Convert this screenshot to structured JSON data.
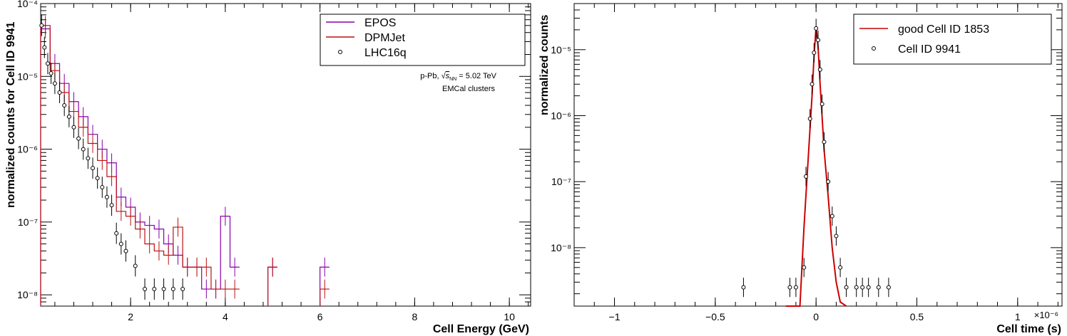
{
  "chart_data": [
    {
      "type": "step",
      "xlabel": "Cell Energy (GeV)",
      "ylabel": "normalized counts for Cell ID 9941",
      "x_range": [
        0.1,
        10.45
      ],
      "y_range": [
        7e-09,
        0.0001
      ],
      "y_scale": "log",
      "x_ticks": [
        {
          "v": 2,
          "label": "2"
        },
        {
          "v": 4,
          "label": "4"
        },
        {
          "v": 6,
          "label": "6"
        },
        {
          "v": 8,
          "label": "8"
        },
        {
          "v": 10,
          "label": "10"
        }
      ],
      "y_ticks": [
        {
          "v": 1e-08,
          "label": "10⁻⁸"
        },
        {
          "v": 1e-07,
          "label": "10⁻⁷"
        },
        {
          "v": 1e-06,
          "label": "10⁻⁶"
        },
        {
          "v": 1e-05,
          "label": "10⁻⁵"
        },
        {
          "v": 0.0001,
          "label": "10⁻⁴"
        }
      ],
      "annotation": [
        "p-Pb, √s_NN = 5.02 TeV",
        "EMCal clusters"
      ],
      "annotation_parts": {
        "prefix": "p-Pb, ",
        "sym": "s",
        "sub": "NN",
        "suffix": " = 5.02 TeV",
        "line2": "EMCal clusters"
      },
      "legend": {
        "placement": "top-right",
        "entries": [
          {
            "label": "EPOS",
            "style": "line",
            "color": "#8800aa"
          },
          {
            "label": "DPMJet",
            "style": "line",
            "color": "#bb1111"
          },
          {
            "label": "LHC16q",
            "style": "marker",
            "color": "#000000"
          }
        ]
      },
      "series": [
        {
          "name": "EPOS",
          "color": "#8800aa",
          "style": "step",
          "bin_width": 0.2,
          "points": [
            [
              0.2,
              4.5e-05
            ],
            [
              0.4,
              1.5e-05
            ],
            [
              0.6,
              8e-06
            ],
            [
              0.8,
              4.5e-06
            ],
            [
              1.0,
              2.8e-06
            ],
            [
              1.2,
              1.6e-06
            ],
            [
              1.4,
              1e-06
            ],
            [
              1.6,
              6.5e-07
            ],
            [
              1.8,
              2.2e-07
            ],
            [
              2.0,
              1.6e-07
            ],
            [
              2.2,
              1e-07
            ],
            [
              2.4,
              9e-08
            ],
            [
              2.6,
              8e-08
            ],
            [
              2.8,
              5e-08
            ],
            [
              3.0,
              3.5e-08
            ],
            [
              3.2,
              2.4e-08
            ],
            [
              3.4,
              2.4e-08
            ],
            [
              3.6,
              1.2e-08
            ],
            [
              3.8,
              1.2e-08
            ],
            [
              4.0,
              1.2e-07
            ],
            [
              4.2,
              2.4e-08
            ],
            [
              5.0,
              2.4e-08
            ],
            [
              6.1,
              2.4e-08
            ]
          ]
        },
        {
          "name": "DPMJet",
          "color": "#bb1111",
          "style": "step",
          "bin_width": 0.2,
          "points": [
            [
              0.2,
              5e-05
            ],
            [
              0.4,
              1.2e-05
            ],
            [
              0.6,
              6e-06
            ],
            [
              0.8,
              3.3e-06
            ],
            [
              1.0,
              2e-06
            ],
            [
              1.2,
              1.2e-06
            ],
            [
              1.4,
              7e-07
            ],
            [
              1.6,
              4.2e-07
            ],
            [
              1.8,
              1.4e-07
            ],
            [
              2.0,
              1.2e-07
            ],
            [
              2.2,
              8e-08
            ],
            [
              2.4,
              5e-08
            ],
            [
              2.6,
              4e-08
            ],
            [
              2.8,
              3.5e-08
            ],
            [
              3.0,
              8.5e-08
            ],
            [
              3.2,
              2.4e-08
            ],
            [
              3.4,
              2.4e-08
            ],
            [
              3.6,
              2.4e-08
            ],
            [
              3.8,
              1.2e-08
            ],
            [
              4.0,
              1.2e-08
            ],
            [
              4.2,
              1.2e-08
            ],
            [
              5.0,
              2.4e-08
            ],
            [
              6.1,
              1.2e-08
            ]
          ]
        },
        {
          "name": "LHC16q",
          "color": "#000000",
          "style": "markers",
          "points": [
            [
              0.12,
              5e-05
            ],
            [
              0.18,
              2.5e-05
            ],
            [
              0.25,
              1.5e-05
            ],
            [
              0.32,
              1.1e-05
            ],
            [
              0.4,
              8e-06
            ],
            [
              0.5,
              6e-06
            ],
            [
              0.6,
              4e-06
            ],
            [
              0.7,
              2.8e-06
            ],
            [
              0.8,
              2e-06
            ],
            [
              0.9,
              1.4e-06
            ],
            [
              1.0,
              1e-06
            ],
            [
              1.1,
              7.5e-07
            ],
            [
              1.2,
              5.5e-07
            ],
            [
              1.3,
              4e-07
            ],
            [
              1.4,
              3e-07
            ],
            [
              1.5,
              2.2e-07
            ],
            [
              1.6,
              1.7e-07
            ],
            [
              1.7,
              7e-08
            ],
            [
              1.8,
              5e-08
            ],
            [
              1.9,
              4e-08
            ],
            [
              2.1,
              2.5e-08
            ],
            [
              2.3,
              1.2e-08
            ],
            [
              2.5,
              1.2e-08
            ],
            [
              2.7,
              1.2e-08
            ],
            [
              2.9,
              1.2e-08
            ],
            [
              3.1,
              1.2e-08
            ]
          ]
        }
      ]
    },
    {
      "type": "line",
      "xlabel": "Cell time (s)",
      "ylabel": "normalized counts",
      "x_range": [
        -1.2e-06,
        1.22e-06
      ],
      "y_range": [
        1.3e-09,
        5e-05
      ],
      "y_scale": "log",
      "x_ticks": [
        {
          "v": -1e-06,
          "label": "−1"
        },
        {
          "v": -5e-07,
          "label": "−0.5"
        },
        {
          "v": 0,
          "label": "0"
        },
        {
          "v": 5e-07,
          "label": "0.5"
        },
        {
          "v": 1e-06,
          "label": "1"
        }
      ],
      "x_exponent_label": "×10⁻⁶",
      "y_ticks": [
        {
          "v": 1e-08,
          "label": "10⁻⁸"
        },
        {
          "v": 1e-07,
          "label": "10⁻⁷"
        },
        {
          "v": 1e-06,
          "label": "10⁻⁶"
        },
        {
          "v": 1e-05,
          "label": "10⁻⁵"
        }
      ],
      "legend": {
        "placement": "top-right",
        "entries": [
          {
            "label": "good Cell ID 1853",
            "style": "line",
            "color": "#cc0000"
          },
          {
            "label": "Cell ID 9941",
            "style": "marker",
            "color": "#000000"
          }
        ]
      },
      "series": [
        {
          "name": "good Cell ID 1853",
          "color": "#cc0000",
          "style": "line",
          "points": [
            [
              -1.5e-07,
              1.3e-09
            ],
            [
              -8e-08,
              1.3e-09
            ],
            [
              -6e-08,
              2e-08
            ],
            [
              -4e-08,
              2e-07
            ],
            [
              -2e-08,
              2e-06
            ],
            [
              -1e-08,
              8e-06
            ],
            [
              0,
              2.2e-05
            ],
            [
              1e-08,
              1.1e-05
            ],
            [
              2e-08,
              3e-06
            ],
            [
              4e-08,
              3e-07
            ],
            [
              6e-08,
              6e-08
            ],
            [
              8e-08,
              1e-08
            ],
            [
              1e-07,
              3e-09
            ],
            [
              1.2e-07,
              1.5e-09
            ],
            [
              1.5e-07,
              1.3e-09
            ]
          ]
        },
        {
          "name": "Cell ID 9941",
          "color": "#000000",
          "style": "markers",
          "points": [
            [
              -3.6e-07,
              2.5e-09
            ],
            [
              -1.3e-07,
              2.5e-09
            ],
            [
              -1e-07,
              2.5e-09
            ],
            [
              -6e-08,
              5e-09
            ],
            [
              -5e-08,
              1.2e-07
            ],
            [
              -3e-08,
              9e-07
            ],
            [
              -2e-08,
              3e-06
            ],
            [
              -1e-08,
              9e-06
            ],
            [
              0,
              2.1e-05
            ],
            [
              1e-08,
              1.4e-05
            ],
            [
              2e-08,
              5e-06
            ],
            [
              3e-08,
              1.5e-06
            ],
            [
              4e-08,
              4e-07
            ],
            [
              6e-08,
              1e-07
            ],
            [
              8e-08,
              3e-08
            ],
            [
              1e-07,
              1.5e-08
            ],
            [
              1.2e-07,
              5e-09
            ],
            [
              1.5e-07,
              2.5e-09
            ],
            [
              2e-07,
              2.5e-09
            ],
            [
              2.3e-07,
              2.5e-09
            ],
            [
              2.6e-07,
              2.5e-09
            ],
            [
              3.1e-07,
              2.5e-09
            ],
            [
              3.6e-07,
              2.5e-09
            ]
          ]
        }
      ]
    }
  ]
}
